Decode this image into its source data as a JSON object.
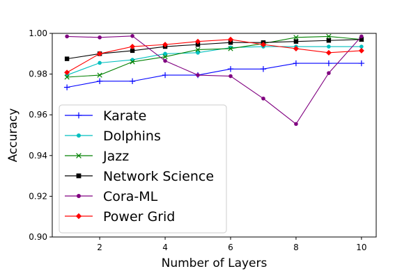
{
  "chart_data": {
    "type": "line",
    "title": "",
    "xlabel": "Number of Layers",
    "ylabel": "Accuracy",
    "x": [
      1,
      2,
      3,
      4,
      5,
      6,
      7,
      8,
      9,
      10
    ],
    "xlim": [
      0.55,
      10.45
    ],
    "ylim": [
      0.9,
      1.0
    ],
    "xticks": [
      "2",
      "4",
      "6",
      "8",
      "10"
    ],
    "yticks": [
      "0.90",
      "0.92",
      "0.94",
      "0.96",
      "0.98",
      "1.00"
    ],
    "grid": false,
    "legend_position": "lower-left",
    "series": [
      {
        "name": "Karate",
        "color": "#0000ff",
        "marker": "plus",
        "values": [
          0.9735,
          0.9765,
          0.9765,
          0.9795,
          0.9795,
          0.9825,
          0.9825,
          0.9853,
          0.9853,
          0.9853
        ]
      },
      {
        "name": "Dolphins",
        "color": "#00bfbf",
        "marker": "circle",
        "values": [
          0.9795,
          0.9855,
          0.987,
          0.99,
          0.9905,
          0.993,
          0.9935,
          0.9935,
          0.9935,
          0.9935
        ]
      },
      {
        "name": "Jazz",
        "color": "#008000",
        "marker": "x",
        "values": [
          0.9785,
          0.9795,
          0.986,
          0.9885,
          0.992,
          0.9925,
          0.995,
          0.998,
          0.9985,
          0.997
        ]
      },
      {
        "name": "Network Science",
        "color": "#000000",
        "marker": "square",
        "values": [
          0.9875,
          0.99,
          0.9915,
          0.9935,
          0.9945,
          0.9955,
          0.9955,
          0.996,
          0.9965,
          0.997
        ]
      },
      {
        "name": "Cora-ML",
        "color": "#800080",
        "marker": "circle",
        "values": [
          0.9985,
          0.998,
          0.9987,
          0.9865,
          0.9795,
          0.979,
          0.968,
          0.9555,
          0.9805,
          0.9985
        ]
      },
      {
        "name": "Power Grid",
        "color": "#ff0000",
        "marker": "diamond",
        "values": [
          0.9808,
          0.99,
          0.9935,
          0.9945,
          0.996,
          0.997,
          0.9945,
          0.9925,
          0.9905,
          0.9915
        ]
      }
    ]
  }
}
